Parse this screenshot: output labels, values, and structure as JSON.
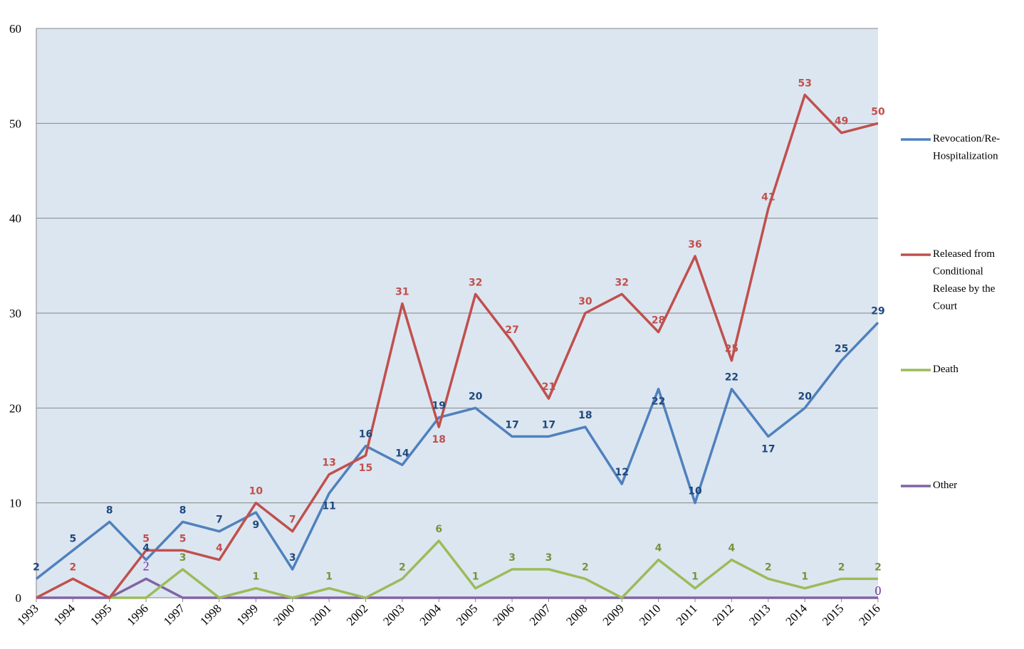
{
  "chart_data": {
    "type": "line",
    "title": "",
    "xlabel": "",
    "ylabel": "",
    "ylim": [
      0,
      60
    ],
    "yticks": [
      0,
      10,
      20,
      30,
      40,
      50,
      60
    ],
    "grid": true,
    "legend_position": "right",
    "plot_background": "#dce6f1",
    "categories": [
      "1993",
      "1994",
      "1995",
      "1996",
      "1997",
      "1998",
      "1999",
      "2000",
      "2001",
      "2002",
      "2003",
      "2004",
      "2005",
      "2006",
      "2007",
      "2008",
      "2009",
      "2010",
      "2011",
      "2012",
      "2013",
      "2014",
      "2015",
      "2016"
    ],
    "series": [
      {
        "name": "Revocation/Re-Hospitalization",
        "legend_lines": [
          "Revocation/Re-",
          "Hospitalization"
        ],
        "color": "#4f81bd",
        "label_color": "#1f497d",
        "values": [
          2,
          5,
          8,
          4,
          8,
          7,
          9,
          3,
          11,
          16,
          14,
          19,
          20,
          17,
          17,
          18,
          12,
          22,
          10,
          22,
          17,
          20,
          25,
          29
        ]
      },
      {
        "name": "Released from Conditional Release by the Court",
        "legend_lines": [
          "Released from",
          "Conditional",
          "Release by the",
          "Court"
        ],
        "color": "#c0504d",
        "label_color": "#c0504d",
        "values": [
          0,
          2,
          0,
          5,
          5,
          4,
          10,
          7,
          13,
          15,
          31,
          18,
          32,
          27,
          21,
          30,
          32,
          28,
          36,
          25,
          41,
          53,
          49,
          50
        ]
      },
      {
        "name": "Death",
        "legend_lines": [
          "Death"
        ],
        "color": "#9bbb59",
        "label_color": "#77933c",
        "values": [
          null,
          null,
          0,
          0,
          3,
          0,
          1,
          0,
          1,
          0,
          2,
          6,
          1,
          3,
          3,
          2,
          0,
          4,
          1,
          4,
          2,
          1,
          2,
          2
        ]
      },
      {
        "name": "Other",
        "legend_lines": [
          "Other"
        ],
        "color": "#8064a2",
        "label_color": "#7030a0",
        "values": [
          0,
          0,
          0,
          2,
          0,
          0,
          0,
          0,
          0,
          0,
          0,
          0,
          0,
          0,
          0,
          0,
          0,
          0,
          0,
          0,
          0,
          0,
          0,
          0
        ]
      }
    ]
  }
}
